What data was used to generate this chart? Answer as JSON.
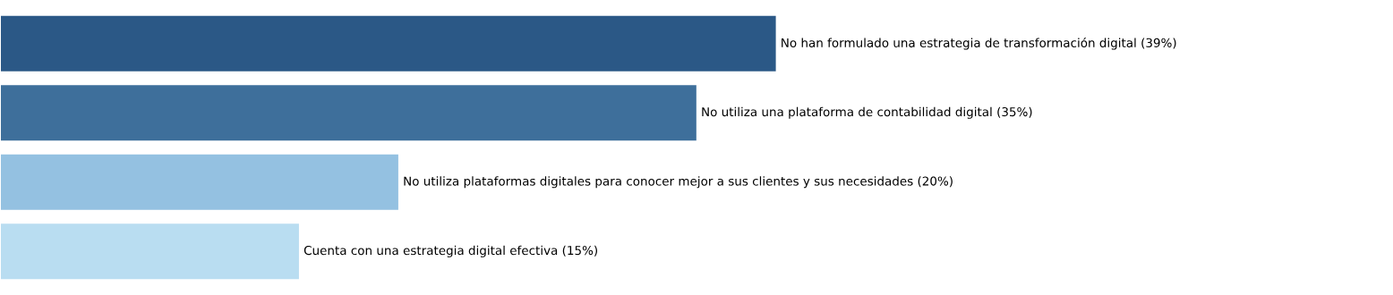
{
  "chart_data": {
    "type": "bar",
    "orientation": "horizontal",
    "categories": [
      null,
      null,
      null,
      null
    ],
    "values": [
      39,
      35,
      20,
      15
    ],
    "value_labels": [
      "No han formulado una estrategia de transformación digital (39%)",
      "No utiliza una plataforma de contabilidad digital (35%)",
      "No utiliza plataformas digitales para conocer mejor a sus clientes y sus necesidades (20%)",
      "Cuenta con una estrategia digital efectiva (15%)"
    ],
    "colors": [
      "#2b5886",
      "#3e6f9b",
      "#94c1e1",
      "#b9ddf1"
    ]
  }
}
